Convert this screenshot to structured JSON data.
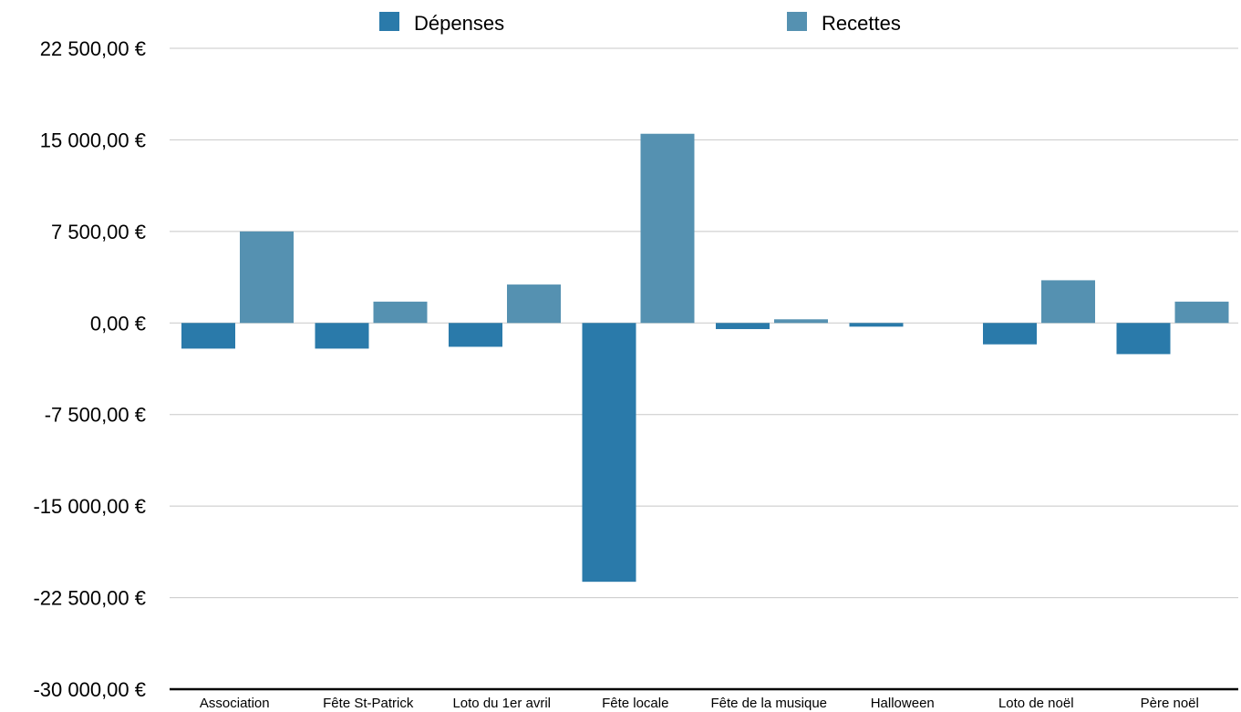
{
  "chart_data": {
    "type": "bar",
    "categories": [
      "Association",
      "Fête St-Patrick",
      "Loto du 1er avril",
      "Fête locale",
      "Fête de la musique",
      "Halloween",
      "Loto de noël",
      "Père noël"
    ],
    "series": [
      {
        "name": "Dépenses",
        "color": "#2a7aaa",
        "values": [
          -2100,
          -2100,
          -1950,
          -21200,
          -500,
          -300,
          -1750,
          -2550
        ]
      },
      {
        "name": "Recettes",
        "color": "#5591b1",
        "values": [
          7500,
          1750,
          3150,
          15500,
          300,
          0,
          3500,
          1750
        ]
      }
    ],
    "ylim": [
      -30000,
      22500
    ],
    "yticks": [
      22500,
      15000,
      7500,
      0,
      -7500,
      -15000,
      -22500,
      -30000
    ],
    "ytick_labels": [
      "22 500,00 €",
      "15 000,00 €",
      "7 500,00 €",
      "0,00 €",
      "-7 500,00 €",
      "-15 000,00 €",
      "-22 500,00 €",
      "-30 000,00 €"
    ],
    "grid": true,
    "legend_position": "top"
  }
}
